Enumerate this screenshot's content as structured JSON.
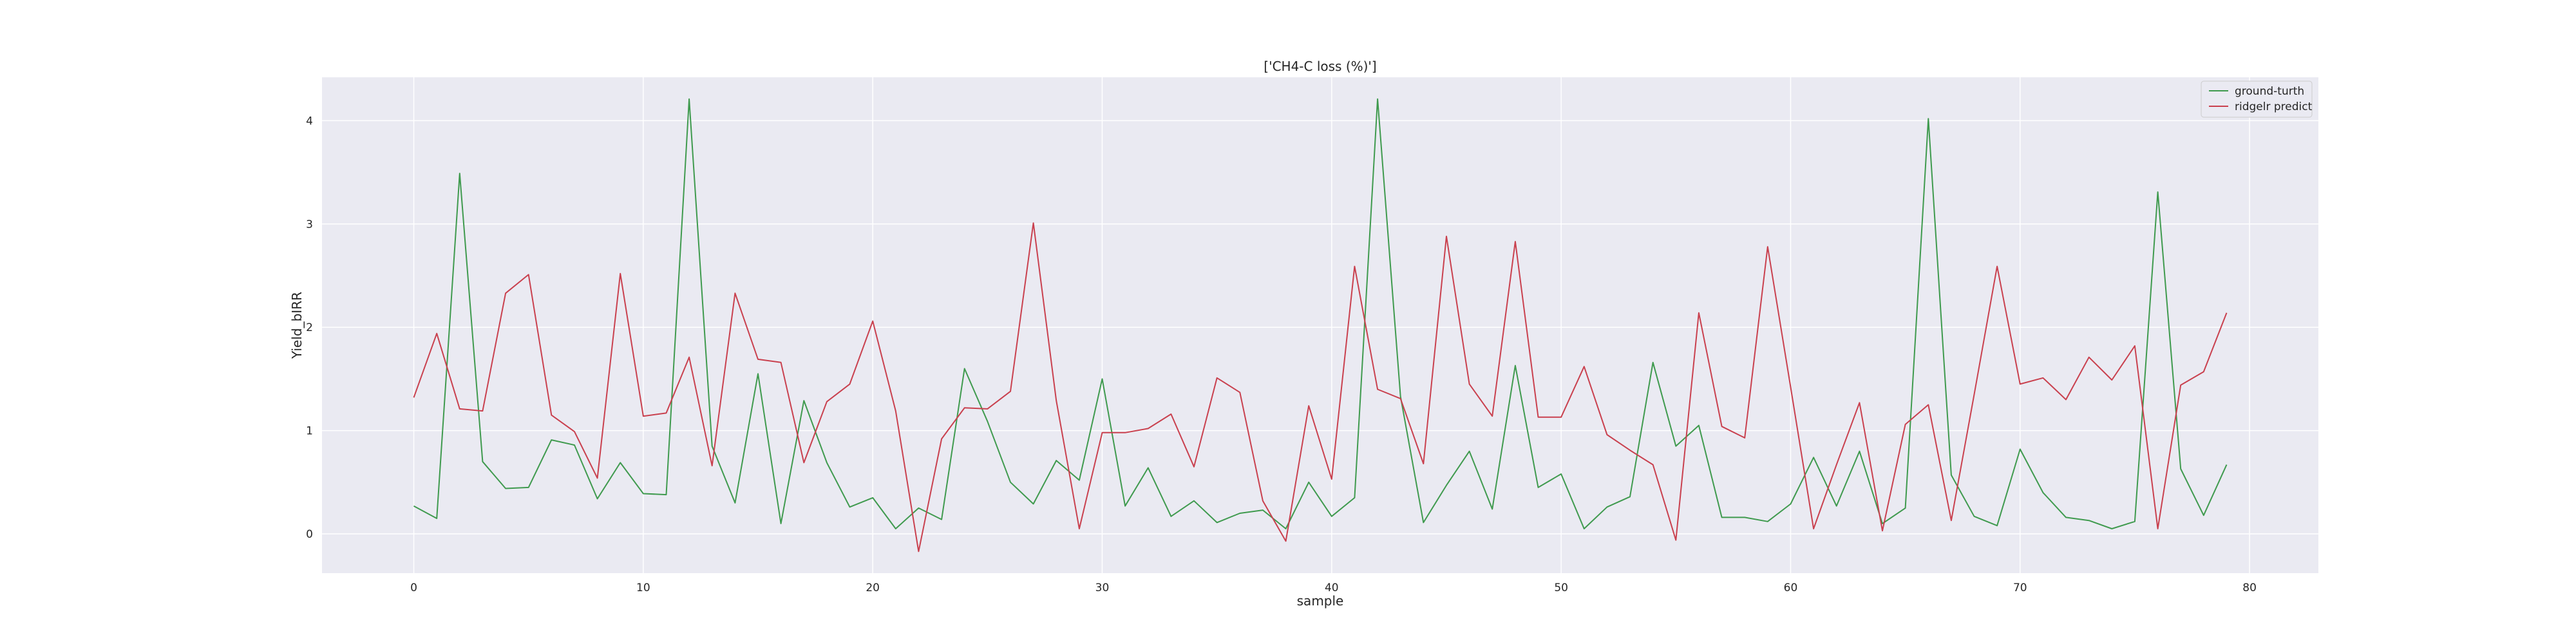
{
  "chart_data": {
    "type": "line",
    "title": "['CH4-C loss (%)']",
    "xlabel": "sample",
    "ylabel": "Yield_bIRR",
    "xlim": [
      -4,
      83
    ],
    "ylim": [
      -0.38,
      4.42
    ],
    "xticks": [
      0,
      10,
      20,
      30,
      40,
      50,
      60,
      70,
      80
    ],
    "yticks": [
      0,
      1,
      2,
      3,
      4
    ],
    "grid": true,
    "legend": "top-right",
    "x": [
      0,
      1,
      2,
      3,
      4,
      5,
      6,
      7,
      8,
      9,
      10,
      11,
      12,
      13,
      14,
      15,
      16,
      17,
      18,
      19,
      20,
      21,
      22,
      23,
      24,
      25,
      26,
      27,
      28,
      29,
      30,
      31,
      32,
      33,
      34,
      35,
      36,
      37,
      38,
      39,
      40,
      41,
      42,
      43,
      44,
      45,
      46,
      47,
      48,
      49,
      50,
      51,
      52,
      53,
      54,
      55,
      56,
      57,
      58,
      59,
      60,
      61,
      62,
      63,
      64,
      65,
      66,
      67,
      68,
      69,
      70,
      71,
      72,
      73,
      74,
      75,
      76,
      77,
      78,
      79
    ],
    "series": [
      {
        "name": "ground-turth",
        "color": "#3f9a4e",
        "values": [
          0.27,
          0.15,
          3.49,
          0.7,
          0.44,
          0.45,
          0.91,
          0.86,
          0.34,
          0.69,
          0.39,
          0.38,
          4.21,
          0.85,
          0.3,
          1.55,
          0.1,
          1.29,
          0.69,
          0.26,
          0.35,
          0.05,
          0.25,
          0.14,
          1.6,
          1.09,
          0.5,
          0.29,
          0.71,
          0.52,
          1.5,
          0.27,
          0.64,
          0.17,
          0.32,
          0.11,
          0.2,
          0.23,
          0.05,
          0.5,
          0.17,
          0.35,
          4.21,
          1.33,
          0.11,
          0.47,
          0.8,
          0.24,
          1.63,
          0.45,
          0.58,
          0.05,
          0.26,
          0.36,
          1.66,
          0.85,
          1.05,
          0.16,
          0.16,
          0.12,
          0.29,
          0.74,
          0.27,
          0.8,
          0.1,
          0.25,
          4.02,
          0.57,
          0.17,
          0.08,
          0.82,
          0.4,
          0.16,
          0.13,
          0.05,
          0.12,
          3.31,
          0.63,
          0.18,
          0.67
        ]
      },
      {
        "name": "ridgelr predict",
        "color": "#c9404e",
        "values": [
          1.32,
          1.94,
          1.21,
          1.19,
          2.33,
          2.51,
          1.15,
          0.99,
          0.54,
          2.52,
          1.14,
          1.17,
          1.71,
          0.66,
          2.33,
          1.69,
          1.66,
          0.69,
          1.28,
          1.45,
          2.06,
          1.19,
          -0.17,
          0.92,
          1.22,
          1.21,
          1.38,
          3.01,
          1.29,
          0.05,
          0.98,
          0.98,
          1.02,
          1.16,
          0.65,
          1.51,
          1.37,
          0.32,
          -0.07,
          1.24,
          0.53,
          2.59,
          1.4,
          1.31,
          0.68,
          2.88,
          1.45,
          1.14,
          2.83,
          1.13,
          1.13,
          1.62,
          0.96,
          0.81,
          0.67,
          -0.06,
          2.14,
          1.04,
          0.93,
          2.78,
          1.42,
          0.05,
          0.67,
          1.27,
          0.03,
          1.06,
          1.25,
          0.13,
          1.35,
          2.59,
          1.45,
          1.51,
          1.3,
          1.71,
          1.49,
          1.82,
          0.05,
          1.44,
          1.57,
          2.14
        ]
      }
    ]
  }
}
